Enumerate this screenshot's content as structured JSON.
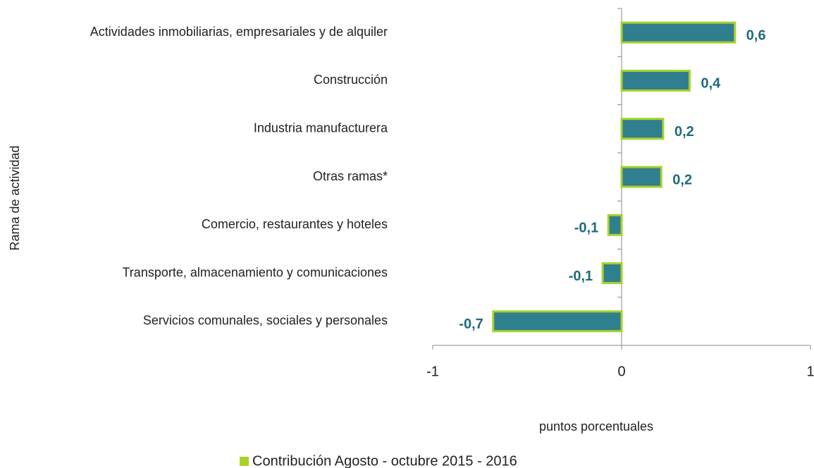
{
  "chart_data": {
    "type": "hbar",
    "categories": [
      "Actividades inmobiliarias, empresariales y de alquiler",
      "Construcción",
      "Industria manufacturera",
      "Otras ramas*",
      "Comercio, restaurantes y hoteles",
      "Transporte, almacenamiento y comunicaciones",
      "Servicios comunales, sociales y personales"
    ],
    "series": [
      {
        "name": "Contribución Agosto - octubre 2015 - 2016",
        "color": "#2f7f8f",
        "border": "#a8d12a",
        "values": [
          0.6,
          0.36,
          0.22,
          0.21,
          -0.07,
          -0.1,
          -0.68
        ],
        "value_labels": [
          "0,6",
          "0,4",
          "0,2",
          "0,2",
          "-0,1",
          "-0,1",
          "-0,7"
        ]
      }
    ],
    "xlim": [
      -1,
      1
    ],
    "xticks": [
      -1,
      0,
      1
    ],
    "x_label": "puntos porcentuales",
    "y_label": "Rama de actividad"
  }
}
